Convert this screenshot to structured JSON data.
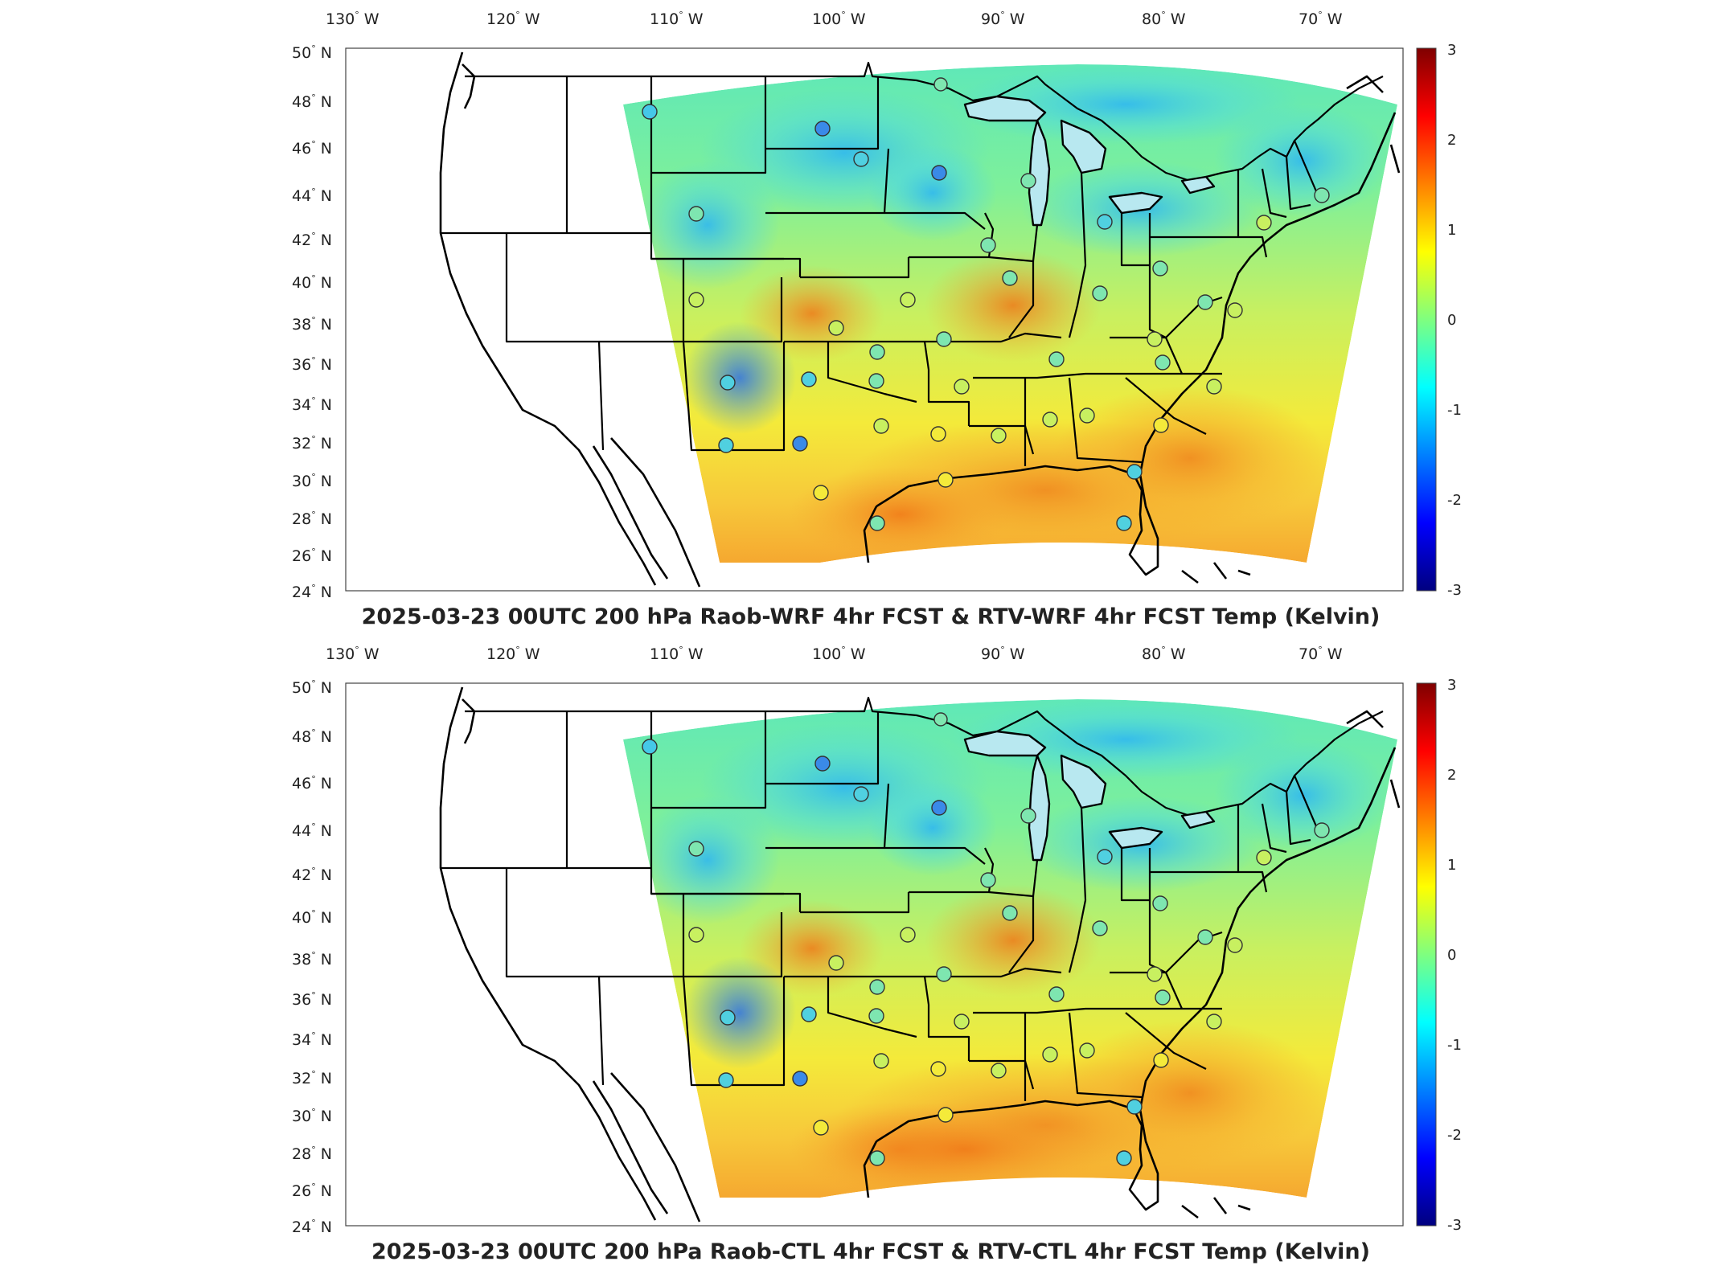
{
  "panels": [
    {
      "id": "top",
      "title": "2025-03-23 00UTC 200 hPa Raob-WRF 4hr FCST & RTV-WRF 4hr FCST Temp (Kelvin)"
    },
    {
      "id": "bottom",
      "title": "2025-03-23 00UTC 200 hPa Raob-CTL 4hr FCST & RTV-CTL 4hr FCST Temp (Kelvin)"
    }
  ],
  "map": {
    "longitude_ticks": [
      "130",
      "120",
      "110",
      "100",
      "90",
      "80",
      "70"
    ],
    "longitude_suffix": "W",
    "latitude_ticks": [
      "50",
      "48",
      "46",
      "44",
      "42",
      "40",
      "38",
      "36",
      "34",
      "32",
      "30",
      "28",
      "26",
      "24"
    ],
    "latitude_suffix": "N",
    "degree_symbol": "°"
  },
  "colorbar": {
    "range": [
      -3,
      3
    ],
    "ticks": [
      "3",
      "2",
      "1",
      "0",
      "-1",
      "-2",
      "-3"
    ],
    "colormap": "jet",
    "colors": [
      "#00007f",
      "#0000ff",
      "#007fff",
      "#00ffff",
      "#7fff7f",
      "#ffff00",
      "#ff7f00",
      "#ff0000",
      "#7f0000"
    ]
  },
  "stations_legend": "circle-marker"
}
